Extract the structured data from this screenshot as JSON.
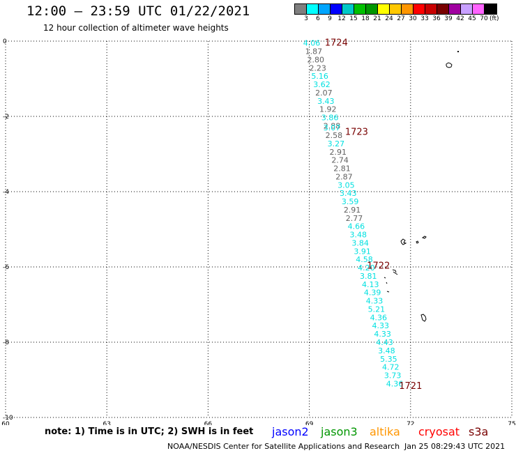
{
  "header": {
    "title": "12:00 – 23:59 UTC 01/22/2021",
    "subtitle": "12 hour collection of altimeter wave heights"
  },
  "colorbar": {
    "colors": [
      "#7f7f7f",
      "#00ffff",
      "#00a5ff",
      "#0000ff",
      "#00c8c8",
      "#00c000",
      "#009600",
      "#ffff00",
      "#ffc800",
      "#ff9600",
      "#ff0000",
      "#c80000",
      "#780000",
      "#a000a0",
      "#c8a0ff",
      "#ff64ff",
      "#000000"
    ],
    "labels": [
      "3",
      "6",
      "9",
      "12",
      "15",
      "18",
      "21",
      "24",
      "27",
      "30",
      "33",
      "36",
      "39",
      "42",
      "45",
      "70"
    ],
    "unit": "(ft)"
  },
  "map": {
    "lon_range": [
      60,
      75
    ],
    "lat_range": [
      -10,
      0
    ],
    "x_ticks": [
      "60",
      "63",
      "66",
      "69",
      "72",
      "75"
    ],
    "y_ticks": [
      "0",
      "-2",
      "-4",
      "-6",
      "-8",
      "-10"
    ],
    "grid_color": "#000000"
  },
  "track": {
    "points": [
      {
        "lon": 69.07,
        "lat": -0.05,
        "v": "4.06",
        "c": "cyan"
      },
      {
        "lon": 69.13,
        "lat": -0.27,
        "v": "1.87",
        "c": "gray"
      },
      {
        "lon": 69.19,
        "lat": -0.49,
        "v": "2.80",
        "c": "gray"
      },
      {
        "lon": 69.25,
        "lat": -0.71,
        "v": "2.23",
        "c": "gray"
      },
      {
        "lon": 69.31,
        "lat": -0.93,
        "v": "5.16",
        "c": "cyan"
      },
      {
        "lon": 69.37,
        "lat": -1.15,
        "v": "3.62",
        "c": "cyan"
      },
      {
        "lon": 69.43,
        "lat": -1.37,
        "v": "2.07",
        "c": "gray"
      },
      {
        "lon": 69.49,
        "lat": -1.59,
        "v": "3.43",
        "c": "cyan"
      },
      {
        "lon": 69.55,
        "lat": -1.81,
        "v": "1.92",
        "c": "gray"
      },
      {
        "lon": 69.61,
        "lat": -2.03,
        "v": "3.86",
        "c": "cyan"
      },
      {
        "lon": 69.67,
        "lat": -2.25,
        "v": "2.88",
        "c": "gray"
      },
      {
        "lon": 69.67,
        "lat": -2.3,
        "v": "3.07",
        "c": "cyan"
      },
      {
        "lon": 69.73,
        "lat": -2.5,
        "v": "2.58",
        "c": "gray"
      },
      {
        "lon": 69.79,
        "lat": -2.72,
        "v": "3.27",
        "c": "cyan"
      },
      {
        "lon": 69.85,
        "lat": -2.94,
        "v": "2.91",
        "c": "gray"
      },
      {
        "lon": 69.91,
        "lat": -3.16,
        "v": "2.74",
        "c": "gray"
      },
      {
        "lon": 69.97,
        "lat": -3.38,
        "v": "2.81",
        "c": "gray"
      },
      {
        "lon": 70.03,
        "lat": -3.6,
        "v": "2.87",
        "c": "gray"
      },
      {
        "lon": 70.09,
        "lat": -3.82,
        "v": "3.05",
        "c": "cyan"
      },
      {
        "lon": 70.15,
        "lat": -4.04,
        "v": "3.43",
        "c": "cyan"
      },
      {
        "lon": 70.21,
        "lat": -4.26,
        "v": "3.59",
        "c": "cyan"
      },
      {
        "lon": 70.27,
        "lat": -4.48,
        "v": "2.91",
        "c": "gray"
      },
      {
        "lon": 70.33,
        "lat": -4.7,
        "v": "2.77",
        "c": "gray"
      },
      {
        "lon": 70.39,
        "lat": -4.92,
        "v": "4.66",
        "c": "cyan"
      },
      {
        "lon": 70.45,
        "lat": -5.14,
        "v": "3.48",
        "c": "cyan"
      },
      {
        "lon": 70.51,
        "lat": -5.36,
        "v": "3.84",
        "c": "cyan"
      },
      {
        "lon": 70.57,
        "lat": -5.58,
        "v": "3.91",
        "c": "cyan"
      },
      {
        "lon": 70.63,
        "lat": -5.8,
        "v": "4.58",
        "c": "cyan"
      },
      {
        "lon": 70.69,
        "lat": -6.02,
        "v": "4.20",
        "c": "cyan"
      },
      {
        "lon": 70.75,
        "lat": -6.24,
        "v": "3.81",
        "c": "cyan"
      },
      {
        "lon": 70.81,
        "lat": -6.46,
        "v": "4.13",
        "c": "cyan"
      },
      {
        "lon": 70.87,
        "lat": -6.68,
        "v": "4.39",
        "c": "cyan"
      },
      {
        "lon": 70.93,
        "lat": -6.9,
        "v": "4.33",
        "c": "cyan"
      },
      {
        "lon": 70.99,
        "lat": -7.12,
        "v": "5.21",
        "c": "cyan"
      },
      {
        "lon": 71.05,
        "lat": -7.34,
        "v": "4.36",
        "c": "cyan"
      },
      {
        "lon": 71.11,
        "lat": -7.56,
        "v": "4.33",
        "c": "cyan"
      },
      {
        "lon": 71.17,
        "lat": -7.78,
        "v": "4.33",
        "c": "cyan"
      },
      {
        "lon": 71.23,
        "lat": -8.0,
        "v": "4.43",
        "c": "cyan"
      },
      {
        "lon": 71.29,
        "lat": -8.22,
        "v": "3.48",
        "c": "cyan"
      },
      {
        "lon": 71.35,
        "lat": -8.44,
        "v": "5.35",
        "c": "cyan"
      },
      {
        "lon": 71.41,
        "lat": -8.66,
        "v": "4.72",
        "c": "cyan"
      },
      {
        "lon": 71.47,
        "lat": -8.88,
        "v": "3.73",
        "c": "cyan"
      },
      {
        "lon": 71.53,
        "lat": -9.1,
        "v": "4.36",
        "c": "cyan"
      }
    ],
    "time_labels": [
      {
        "lon": 69.8,
        "lat": -0.03,
        "t": "1724"
      },
      {
        "lon": 70.4,
        "lat": -2.4,
        "t": "1723"
      },
      {
        "lon": 71.05,
        "lat": -5.95,
        "t": "1722"
      },
      {
        "lon": 72.0,
        "lat": -9.15,
        "t": "1721"
      }
    ],
    "colors": {
      "cyan": "#00e0e0",
      "gray": "#606060",
      "time": "#780000"
    }
  },
  "missions": [
    {
      "name": "jason2",
      "color": "#0000ff"
    },
    {
      "name": "jason3",
      "color": "#009600"
    },
    {
      "name": "altika",
      "color": "#ff9600"
    },
    {
      "name": "cryosat",
      "color": "#ff0000"
    },
    {
      "name": "s3a",
      "color": "#780000"
    }
  ],
  "footer": {
    "note": "note: 1) Time is in UTC; 2) SWH is in feet",
    "credit": "NOAA/NESDIS Center for Satellite Applications and Research",
    "timestamp": "Jan 25 08:29:43 UTC 2021"
  }
}
